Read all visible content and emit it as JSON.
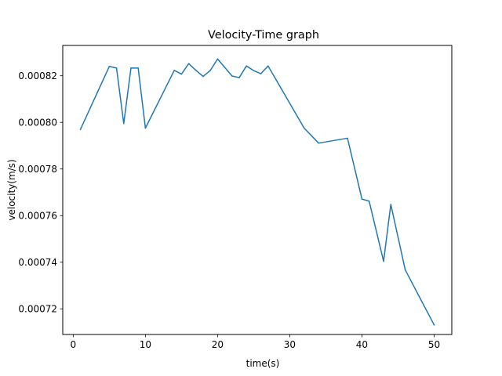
{
  "chart_data": {
    "type": "line",
    "title": "Velocity-Time graph",
    "xlabel": "time(s)",
    "ylabel": "velocity(m/s)",
    "xlim": [
      -1.45,
      52.45
    ],
    "ylim": [
      0.000709,
      0.000833
    ],
    "x_ticks": [
      0,
      10,
      20,
      30,
      40,
      50
    ],
    "x_tick_labels": [
      "0",
      "10",
      "20",
      "30",
      "40",
      "50"
    ],
    "y_ticks": [
      0.00072,
      0.00074,
      0.00076,
      0.00078,
      0.0008,
      0.00082
    ],
    "y_tick_labels": [
      "0.00072",
      "0.00074",
      "0.00076",
      "0.00078",
      "0.00080",
      "0.00082"
    ],
    "grid": false,
    "line_color": "#1f77b4",
    "series": [
      {
        "x": [
          1,
          5,
          6,
          7,
          8,
          9,
          10,
          14,
          15,
          16,
          17,
          18,
          19,
          20,
          22,
          23,
          24,
          25,
          26,
          27,
          32,
          34,
          38,
          40,
          41,
          43,
          44,
          46,
          50
        ],
        "y": [
          0.000797,
          0.000824,
          0.0008233,
          0.0007995,
          0.0008233,
          0.0008233,
          0.0007975,
          0.0008223,
          0.0008207,
          0.0008252,
          0.0008223,
          0.0008197,
          0.0008223,
          0.0008272,
          0.0008199,
          0.0008192,
          0.0008242,
          0.0008222,
          0.0008209,
          0.0008242,
          0.0007975,
          0.0007911,
          0.0007932,
          0.0007671,
          0.0007662,
          0.0007404,
          0.0007648,
          0.0007367,
          0.0007131
        ]
      }
    ]
  }
}
